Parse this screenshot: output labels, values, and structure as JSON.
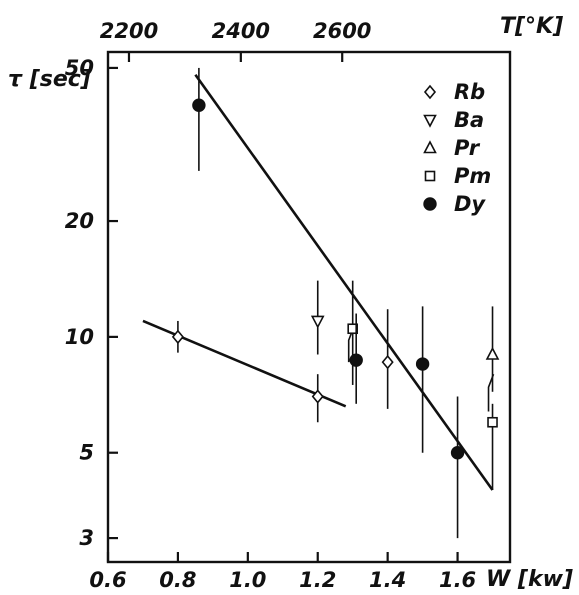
{
  "chart_data": {
    "type": "scatter",
    "title": "",
    "xlabel": "W [kw]",
    "ylabel": "τ [sec]",
    "x2label": "T[°K]",
    "y_scale": "log",
    "xlim": [
      0.6,
      1.75
    ],
    "ylim": [
      2.6,
      55
    ],
    "x_ticks": [
      {
        "value": 0.6,
        "label": "0.6"
      },
      {
        "value": 0.8,
        "label": "0.8"
      },
      {
        "value": 1.0,
        "label": "1.0"
      },
      {
        "value": 1.2,
        "label": "1.2"
      },
      {
        "value": 1.4,
        "label": "1.4"
      },
      {
        "value": 1.6,
        "label": "1.6"
      }
    ],
    "y_ticks": [
      {
        "value": 3,
        "label": "3"
      },
      {
        "value": 5,
        "label": "5"
      },
      {
        "value": 10,
        "label": "10"
      },
      {
        "value": 20,
        "label": "20"
      },
      {
        "value": 50,
        "label": "50"
      }
    ],
    "x2_ticks": [
      {
        "value": 0.66,
        "label": "2200"
      },
      {
        "value": 0.98,
        "label": "2400"
      },
      {
        "value": 1.27,
        "label": "2600"
      }
    ],
    "legend_placement": "top-right",
    "series": [
      {
        "name": "Rb",
        "marker": "diamond",
        "fill": false,
        "points": [
          {
            "x": 0.8,
            "y": 10,
            "ylo": 9.1,
            "yhi": 11
          },
          {
            "x": 1.2,
            "y": 7,
            "ylo": 6,
            "yhi": 8
          }
        ]
      },
      {
        "name": "Ba",
        "marker": "triangle-down",
        "fill": false,
        "points": [
          {
            "x": 1.2,
            "y": 11,
            "ylo": 9,
            "yhi": 14
          }
        ]
      },
      {
        "name": "Pr",
        "marker": "triangle-up",
        "fill": false,
        "points": [
          {
            "x": 1.7,
            "y": 9,
            "ylo": 7.2,
            "yhi": 12
          }
        ]
      },
      {
        "name": "Pm",
        "marker": "square",
        "fill": false,
        "points": [
          {
            "x": 1.3,
            "y": 10.5,
            "ylo": 7.5,
            "yhi": 14
          },
          {
            "x": 1.7,
            "y": 6,
            "ylo": 4,
            "yhi": 6.7
          }
        ]
      },
      {
        "name": "Dy",
        "marker": "circle",
        "fill": true,
        "points": [
          {
            "x": 0.86,
            "y": 40,
            "ylo": 27,
            "yhi": 50
          },
          {
            "x": 1.31,
            "y": 8.7,
            "ylo": 6.7,
            "yhi": 11.5
          },
          {
            "x": 1.5,
            "y": 8.5,
            "ylo": 5,
            "yhi": 12
          },
          {
            "x": 1.6,
            "y": 5,
            "ylo": 3,
            "yhi": 7
          }
        ]
      }
    ],
    "fit_lines": [
      {
        "label": "Rb",
        "points": [
          [
            0.7,
            11
          ],
          [
            1.28,
            6.6
          ]
        ]
      },
      {
        "label": "Dy",
        "points": [
          [
            0.85,
            48
          ],
          [
            1.7,
            4.0
          ]
        ]
      }
    ],
    "extra_marks": [
      {
        "series": "Rb",
        "x": 1.4,
        "y": 8.6,
        "ylo": 6.5,
        "yhi": 11.8
      }
    ]
  }
}
